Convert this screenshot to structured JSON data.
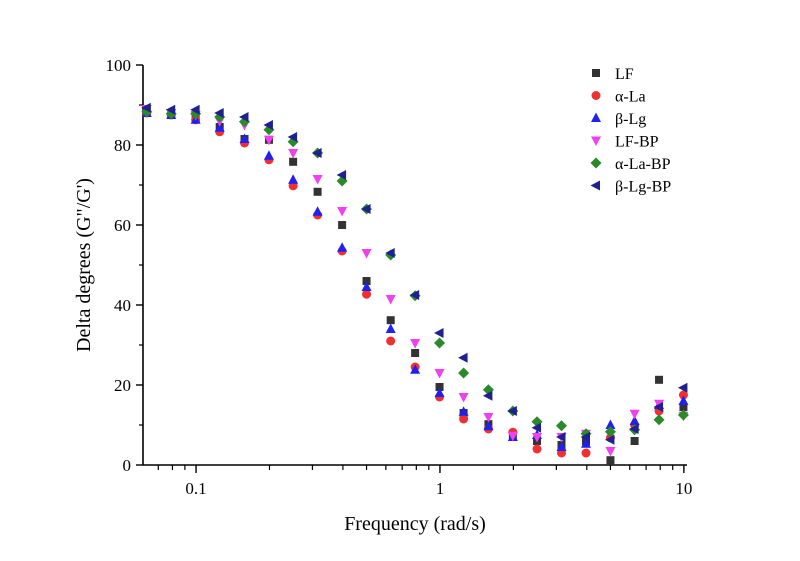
{
  "chart_data": {
    "type": "scatter",
    "title": "",
    "xlabel": "Frequency (rad/s)",
    "ylabel": "Delta degrees (G\"/G')",
    "xscale": "log",
    "xlim": [
      0.0606,
      10.3
    ],
    "ylim": [
      0,
      100
    ],
    "grid": false,
    "legend_position": "top-right",
    "x_ticks": [
      {
        "value": 0.1,
        "label": "0.1"
      },
      {
        "value": 1,
        "label": "1"
      },
      {
        "value": 10,
        "label": "10"
      }
    ],
    "y_ticks": [
      {
        "value": 0,
        "label": "0"
      },
      {
        "value": 20,
        "label": "20"
      },
      {
        "value": 40,
        "label": "40"
      },
      {
        "value": 60,
        "label": "60"
      },
      {
        "value": 80,
        "label": "80"
      },
      {
        "value": 100,
        "label": "100"
      }
    ],
    "x": [
      0.0628,
      0.0791,
      0.0996,
      0.125,
      0.158,
      0.199,
      0.25,
      0.315,
      0.397,
      0.5,
      0.628,
      0.791,
      0.996,
      1.25,
      1.58,
      1.99,
      2.5,
      3.15,
      3.97,
      5.0,
      6.28,
      7.91,
      9.96
    ],
    "series": [
      {
        "name": "LF",
        "marker": "square",
        "color": "#333333",
        "values": [
          88.5,
          87.5,
          86.5,
          84.5,
          81.5,
          81.3,
          75.8,
          68.3,
          60,
          46,
          36.2,
          28,
          19.5,
          13,
          10.2,
          7.5,
          6,
          5,
          6,
          1.2,
          6,
          21.3,
          14.5
        ]
      },
      {
        "name": "α-La",
        "marker": "circle",
        "color": "#f03030",
        "values": [
          88,
          87.5,
          86.3,
          83.3,
          80.5,
          76.3,
          69.8,
          62.5,
          53.5,
          42.7,
          31,
          24.5,
          17,
          11.5,
          9,
          8.2,
          4,
          3,
          3,
          6.8,
          10,
          13.5,
          17.5
        ]
      },
      {
        "name": "β-Lg",
        "marker": "triangle-up",
        "color": "#2020f0",
        "values": [
          88,
          87.5,
          86.3,
          84.3,
          81.5,
          77.3,
          71.3,
          63.3,
          54.3,
          44.5,
          34,
          23.8,
          18,
          13.3,
          9.7,
          7,
          7.5,
          4.5,
          5.3,
          10,
          11,
          15,
          16
        ]
      },
      {
        "name": "LF-BP",
        "marker": "triangle-down",
        "color": "#f040f0",
        "values": [
          89,
          88,
          87.5,
          86,
          85,
          81.3,
          78,
          71.5,
          63.5,
          53,
          41.5,
          30.5,
          23,
          17,
          12,
          7.3,
          7,
          7,
          7.8,
          3.5,
          12.8,
          15.3,
          12.3
        ]
      },
      {
        "name": "α-La-BP",
        "marker": "diamond",
        "color": "#2a8a2a",
        "values": [
          88.3,
          87.8,
          87.8,
          87,
          85.8,
          83.8,
          80.8,
          78,
          71,
          64,
          52.5,
          42.3,
          30.5,
          23,
          18.8,
          13.5,
          10.8,
          9.8,
          7.8,
          8.3,
          8.8,
          11.3,
          12.5
        ]
      },
      {
        "name": "β-Lg-BP",
        "marker": "triangle-left",
        "color": "#202090",
        "values": [
          89.3,
          88.8,
          88.8,
          88,
          87,
          85,
          82,
          78,
          72.5,
          64,
          53,
          42.5,
          33,
          26.8,
          17.3,
          13.5,
          9.3,
          7,
          7,
          6.3,
          9,
          14.5,
          19.3
        ]
      }
    ]
  }
}
